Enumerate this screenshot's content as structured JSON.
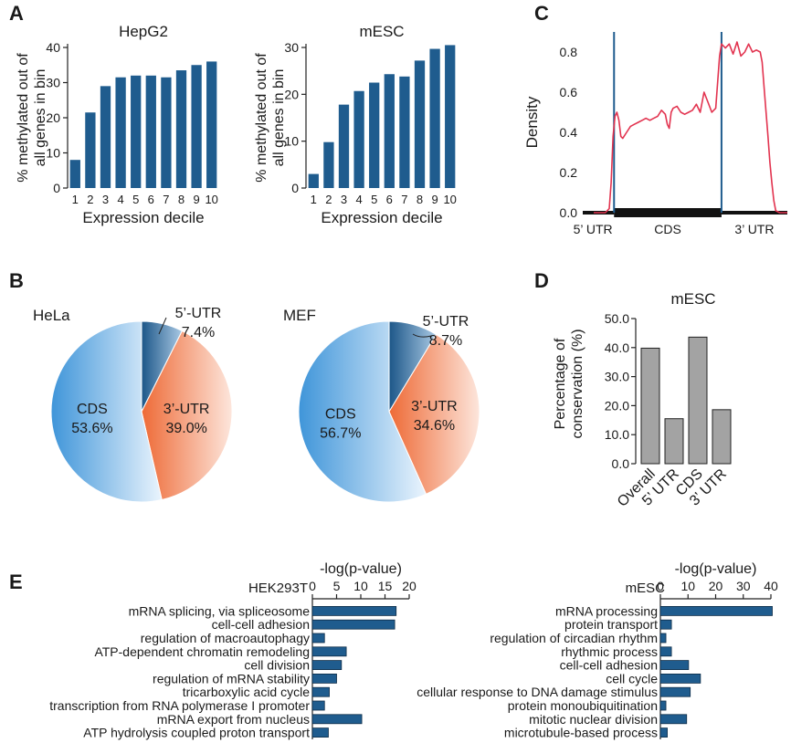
{
  "colors": {
    "bar_blue": "#1f5c8e",
    "bar_gray": "#a3a3a3",
    "density_line": "#e2334f",
    "marker_line": "#1f5c8e",
    "pie_utr5": "#2c6a9c",
    "pie_utr3": "#ee7040",
    "pie_cds": "#3f95d9"
  },
  "panels": {
    "A": "A",
    "B": "B",
    "C": "C",
    "D": "D",
    "E": "E"
  },
  "chart_data": [
    {
      "id": "A1",
      "type": "bar",
      "title": "HepG2",
      "ylabel": "% methylated out of\nall genes in bin",
      "xlabel": "Expression decile",
      "categories": [
        "1",
        "2",
        "3",
        "4",
        "5",
        "6",
        "7",
        "8",
        "9",
        "10"
      ],
      "values": [
        8,
        21.5,
        29,
        31.5,
        32,
        32,
        31.5,
        33.5,
        35,
        36
      ],
      "ylim": [
        0,
        40
      ],
      "yticks": [
        "0",
        "10",
        "20",
        "30",
        "40"
      ]
    },
    {
      "id": "A2",
      "type": "bar",
      "title": "mESC",
      "ylabel": "% methylated out of\nall genes in bin",
      "xlabel": "Expression decile",
      "categories": [
        "1",
        "2",
        "3",
        "4",
        "5",
        "6",
        "7",
        "8",
        "9",
        "10"
      ],
      "values": [
        3,
        9.8,
        17.8,
        20.7,
        22.5,
        24.3,
        23.8,
        27.2,
        29.7,
        30.5
      ],
      "ylim": [
        0,
        30
      ],
      "yticks": [
        "0",
        "10",
        "20",
        "30"
      ]
    },
    {
      "id": "C",
      "type": "line",
      "ylabel": "Density",
      "yticks": [
        "0.0",
        "0.2",
        "0.4",
        "0.6",
        "0.8"
      ],
      "ylim": [
        0,
        0.9
      ],
      "x": [
        0,
        3,
        6,
        8,
        9,
        10,
        11,
        12,
        13,
        14,
        15,
        17,
        19,
        21,
        23,
        25,
        27,
        29,
        31,
        33,
        35,
        37,
        38,
        39,
        40,
        41,
        43,
        45,
        47,
        49,
        51,
        53,
        55,
        57,
        59,
        61,
        63,
        65,
        66,
        68,
        70,
        72,
        74,
        76,
        78,
        80,
        82,
        84,
        86,
        87,
        88,
        89,
        90,
        91,
        92,
        93,
        94,
        96,
        98,
        100
      ],
      "y": [
        0,
        0,
        0,
        0.02,
        0.15,
        0.38,
        0.48,
        0.5,
        0.46,
        0.38,
        0.37,
        0.4,
        0.43,
        0.44,
        0.45,
        0.46,
        0.47,
        0.46,
        0.47,
        0.48,
        0.51,
        0.49,
        0.44,
        0.42,
        0.5,
        0.52,
        0.53,
        0.5,
        0.49,
        0.5,
        0.51,
        0.54,
        0.5,
        0.6,
        0.55,
        0.5,
        0.52,
        0.78,
        0.84,
        0.82,
        0.84,
        0.79,
        0.85,
        0.78,
        0.8,
        0.84,
        0.8,
        0.81,
        0.8,
        0.75,
        0.62,
        0.5,
        0.38,
        0.25,
        0.15,
        0.06,
        0.01,
        0,
        0,
        0
      ],
      "vlines": [
        10.5,
        66
      ],
      "regions": [
        "5’ UTR",
        "CDS",
        "3’ UTR"
      ]
    },
    {
      "id": "B1",
      "type": "pie",
      "title": "HeLa",
      "slices": [
        {
          "name": "5’-UTR",
          "value": 7.4,
          "label": "7.4%"
        },
        {
          "name": "3’-UTR",
          "value": 39.0,
          "label": "39.0%"
        },
        {
          "name": "CDS",
          "value": 53.6,
          "label": "53.6%"
        }
      ]
    },
    {
      "id": "B2",
      "type": "pie",
      "title": "MEF",
      "slices": [
        {
          "name": "5’-UTR",
          "value": 8.7,
          "label": "8.7%"
        },
        {
          "name": "3’-UTR",
          "value": 34.6,
          "label": "34.6%"
        },
        {
          "name": "CDS",
          "value": 56.7,
          "label": "56.7%"
        }
      ]
    },
    {
      "id": "D",
      "type": "bar",
      "title": "mESC",
      "ylabel": "Percentage of\nconservation (%)",
      "categories": [
        "Overall",
        "5’ UTR",
        "CDS",
        "3’ UTR"
      ],
      "values": [
        39.8,
        15.5,
        43.6,
        18.6
      ],
      "ylim": [
        0,
        50
      ],
      "yticks": [
        "0.0",
        "10.0",
        "20.0",
        "30.0",
        "40.0",
        "50.0"
      ]
    },
    {
      "id": "E1",
      "type": "bar",
      "orientation": "horizontal",
      "title": "HEK293T",
      "xlabel": "-log(p-value)",
      "xticks": [
        "0",
        "5",
        "10",
        "15",
        "20"
      ],
      "xlim": [
        0,
        20
      ],
      "categories": [
        "mRNA splicing, via spliceosome",
        "cell-cell adhesion",
        "regulation of macroautophagy",
        "ATP-dependent chromatin remodeling",
        "cell division",
        "regulation of mRNA stability",
        "tricarboxylic acid cycle",
        "transcription from RNA polymerase I promoter",
        "mRNA export from nucleus",
        "ATP hydrolysis coupled proton transport"
      ],
      "values": [
        17.3,
        17.0,
        2.5,
        7.0,
        6.0,
        5.0,
        3.5,
        2.5,
        10.2,
        3.3
      ]
    },
    {
      "id": "E2",
      "type": "bar",
      "orientation": "horizontal",
      "title": "mESC",
      "xlabel": "-log(p-value)",
      "xticks": [
        "0",
        "10",
        "20",
        "30",
        "40"
      ],
      "xlim": [
        0,
        40
      ],
      "categories": [
        "mRNA processing",
        "protein transport",
        "regulation of circadian rhythm",
        "rhythmic process",
        "cell-cell adhesion",
        "cell cycle",
        "cellular response to DNA damage stimulus",
        "protein monoubiquitination",
        "mitotic nuclear division",
        "microtubule-based process"
      ],
      "values": [
        40.5,
        4.0,
        2.0,
        4.0,
        10.2,
        14.5,
        10.8,
        2.0,
        9.5,
        2.5
      ]
    }
  ]
}
